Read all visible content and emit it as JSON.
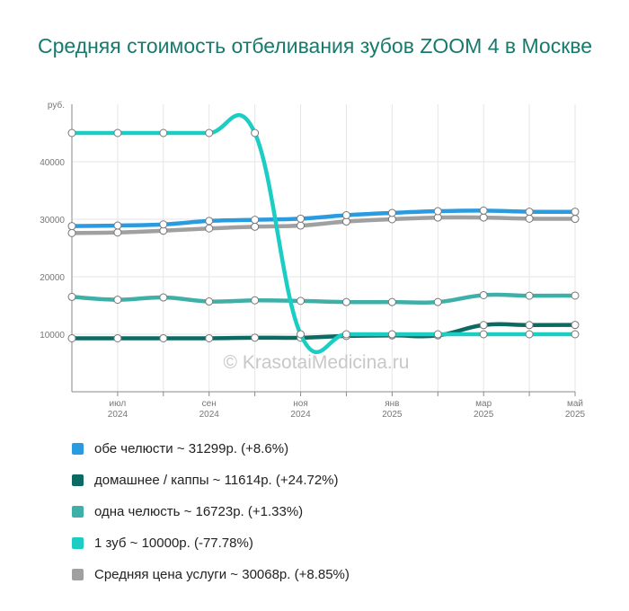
{
  "title": "Средняя стоимость отбеливания зубов ZOOM 4 в Москве",
  "watermark": "© KrasotaiMedicina.ru",
  "chart_data": {
    "type": "line",
    "y_unit": "руб.",
    "ylim": [
      0,
      50000
    ],
    "y_ticks": [
      "10000",
      "20000",
      "30000",
      "40000"
    ],
    "x": [
      "2024-06",
      "2024-07",
      "2024-08",
      "2024-09",
      "2024-10",
      "2024-11",
      "2024-12",
      "2025-01",
      "2025-02",
      "2025-03",
      "2025-04",
      "2025-05"
    ],
    "x_tick_labels": [
      {
        "at": "2024-07",
        "month": "июл",
        "year": "2024"
      },
      {
        "at": "2024-09",
        "month": "сен",
        "year": "2024"
      },
      {
        "at": "2024-11",
        "month": "ноя",
        "year": "2024"
      },
      {
        "at": "2025-01",
        "month": "янв",
        "year": "2025"
      },
      {
        "at": "2025-03",
        "month": "мар",
        "year": "2025"
      },
      {
        "at": "2025-05",
        "month": "май",
        "year": "2025"
      }
    ],
    "grid": true,
    "series": [
      {
        "name": "обе челюсти ~ 31299р. (+8.6%)",
        "color": "#2b9be0",
        "values": [
          28800,
          28900,
          29100,
          29700,
          29900,
          30100,
          30700,
          31100,
          31400,
          31500,
          31300,
          31299
        ]
      },
      {
        "name": "домашнее / каппы ~ 11614р. (+24.72%)",
        "color": "#0b6b62",
        "values": [
          9300,
          9300,
          9300,
          9300,
          9400,
          9400,
          9700,
          9800,
          9800,
          11600,
          11600,
          11614
        ]
      },
      {
        "name": "одна челюсть ~ 16723р. (+1.33%)",
        "color": "#3eb0a8",
        "values": [
          16500,
          16000,
          16400,
          15700,
          15900,
          15800,
          15600,
          15600,
          15600,
          16800,
          16700,
          16723
        ]
      },
      {
        "name": "1 зуб ~ 10000р. (-77.78%)",
        "color": "#1ccdc4",
        "values": [
          45000,
          45000,
          45000,
          45000,
          45000,
          10000,
          10000,
          10000,
          10000,
          10000,
          10000,
          10000
        ]
      },
      {
        "name": "Средняя цена услуги ~ 30068р. (+8.85%)",
        "color": "#a0a0a0",
        "values": [
          27600,
          27700,
          28000,
          28400,
          28700,
          28900,
          29600,
          30000,
          30300,
          30300,
          30100,
          30068
        ]
      }
    ]
  }
}
